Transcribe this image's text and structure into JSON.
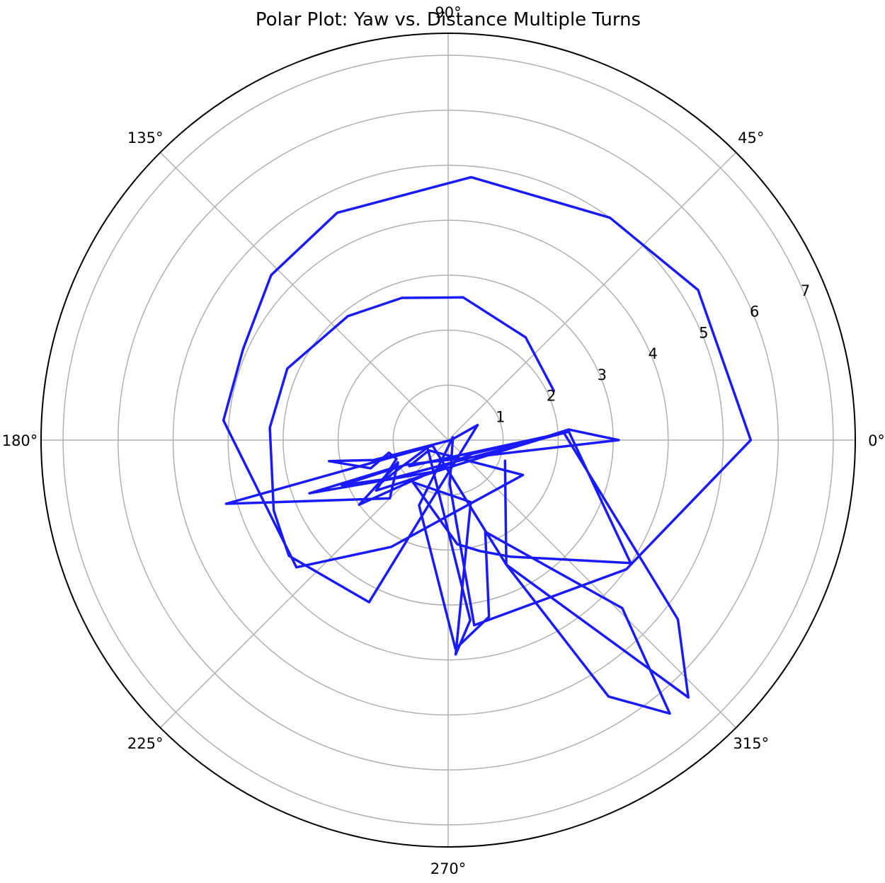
{
  "chart_data": {
    "type": "polar_line",
    "title": "Polar Plot: Yaw vs. Distance Multiple Turns",
    "theta_unit": "degrees",
    "theta_ticks": [
      0,
      45,
      90,
      135,
      180,
      225,
      270,
      315
    ],
    "theta_tick_labels": [
      "0°",
      "45°",
      "90°",
      "135°",
      "180°",
      "225°",
      "270°",
      "315°"
    ],
    "r_ticks": [
      1,
      2,
      3,
      4,
      5,
      6,
      7
    ],
    "r_tick_labels": [
      "1",
      "2",
      "3",
      "4",
      "5",
      "6",
      "7"
    ],
    "rlim": [
      0,
      7.4
    ],
    "r_label_angle": 22.5,
    "grid": true,
    "line_color": "#1a1aff",
    "series": [
      {
        "points": [
          [
            2.12,
            25
          ],
          [
            2.34,
            53
          ],
          [
            2.61,
            84
          ],
          [
            2.72,
            108
          ],
          [
            2.9,
            129
          ],
          [
            3.2,
            156
          ],
          [
            3.25,
            176
          ],
          [
            3.42,
            202
          ],
          [
            3.58,
            216
          ],
          [
            3.28,
            244
          ],
          [
            0.6,
            27
          ],
          [
            0.05,
            0
          ],
          [
            1.4,
            195
          ],
          [
            2.2,
            190
          ],
          [
            1.5,
            200
          ],
          [
            1.1,
            192
          ],
          [
            1.0,
            200
          ],
          [
            1.6,
            215
          ],
          [
            2.2,
            5
          ],
          [
            3.1,
            0
          ],
          [
            0.9,
            210
          ],
          [
            2.1,
            203
          ],
          [
            1.2,
            215
          ],
          [
            2.2,
            4
          ],
          [
            0.85,
            214
          ],
          [
            0.4,
            208
          ],
          [
            1.5,
            335
          ],
          [
            2.2,
            242
          ],
          [
            3.6,
            220
          ],
          [
            4.1,
            175
          ],
          [
            4.08,
            156
          ],
          [
            4.4,
            137
          ],
          [
            4.6,
            116
          ],
          [
            4.8,
            85
          ],
          [
            5.0,
            54
          ],
          [
            5.3,
            31
          ],
          [
            5.5,
            0
          ],
          [
            4.0,
            324
          ],
          [
            3.4,
            278
          ],
          [
            0.8,
            272
          ],
          [
            0.1,
            30
          ],
          [
            1.3,
            246
          ],
          [
            3.8,
            272
          ],
          [
            3.3,
            283
          ],
          [
            1.8,
            292
          ],
          [
            4.4,
            316
          ],
          [
            6.4,
            309
          ],
          [
            5.5,
            302
          ],
          [
            2.5,
            295
          ],
          [
            0.3,
            200
          ],
          [
            4.2,
            196
          ],
          [
            1.5,
            225
          ],
          [
            1.0,
            204
          ],
          [
            2.0,
            216
          ],
          [
            0.5,
            330
          ],
          [
            2.2,
            4
          ],
          [
            4.0,
            326
          ],
          [
            2.4,
            298
          ],
          [
            2.1,
            286
          ],
          [
            1.9,
            275
          ],
          [
            1.0,
            230
          ],
          [
            1.2,
            290
          ],
          [
            3.9,
            272
          ],
          [
            3.3,
            277
          ],
          [
            0.4,
            200
          ],
          [
            1.0,
            210
          ],
          [
            1.6,
            213
          ],
          [
            1.1,
            207
          ],
          [
            2.7,
            201
          ],
          [
            0.6,
            250
          ],
          [
            2.1,
            4
          ],
          [
            5.3,
            322
          ],
          [
            6.4,
            313
          ],
          [
            2.5,
            295
          ],
          [
            1.1,
            340
          ]
        ]
      }
    ]
  }
}
